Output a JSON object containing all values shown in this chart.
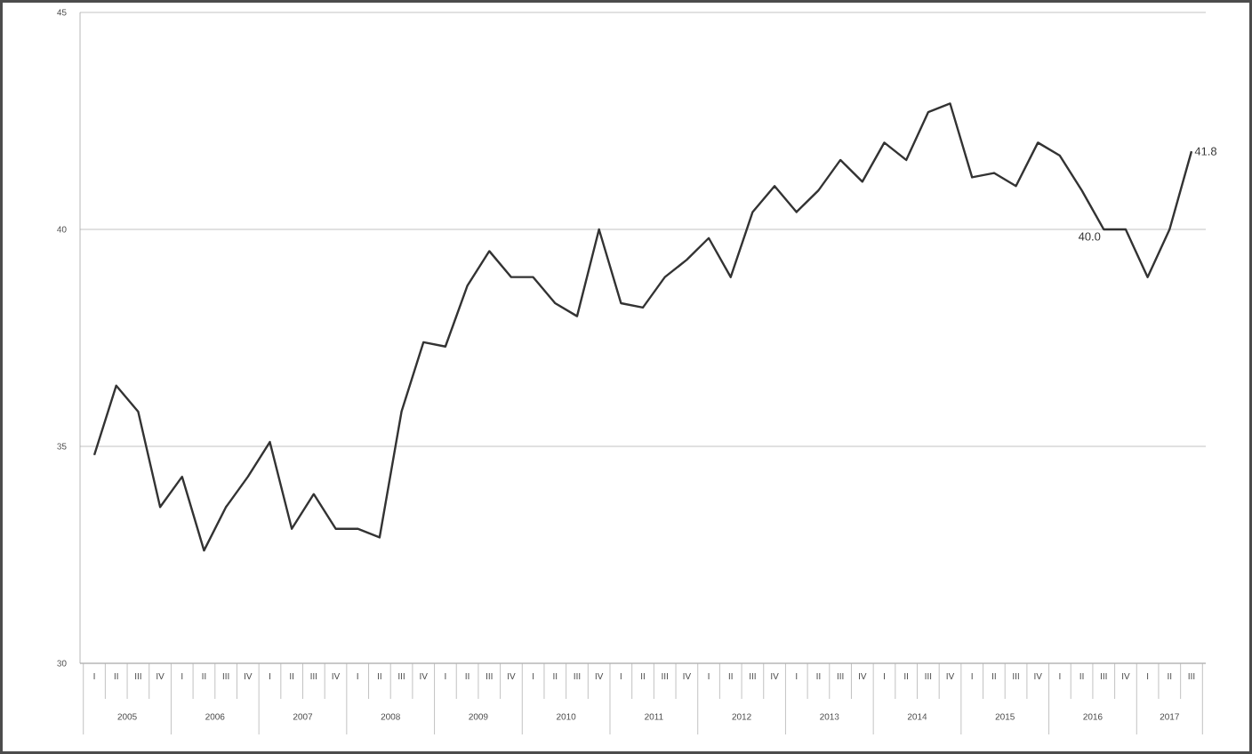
{
  "chart_data": {
    "type": "line",
    "categories": [
      "I",
      "II",
      "III",
      "IV",
      "I",
      "II",
      "III",
      "IV",
      "I",
      "II",
      "III",
      "IV",
      "I",
      "II",
      "III",
      "IV",
      "I",
      "II",
      "III",
      "IV",
      "I",
      "II",
      "III",
      "IV",
      "I",
      "II",
      "III",
      "IV",
      "I",
      "II",
      "III",
      "IV",
      "I",
      "II",
      "III",
      "IV",
      "I",
      "II",
      "III",
      "IV",
      "I",
      "II",
      "III",
      "IV",
      "I",
      "II",
      "III",
      "IV",
      "I",
      "II",
      "III"
    ],
    "series": [
      {
        "color": "#333333",
        "values": [
          34.8,
          36.4,
          35.8,
          33.6,
          34.3,
          32.6,
          33.6,
          34.3,
          35.1,
          33.1,
          33.9,
          33.1,
          33.1,
          32.9,
          35.8,
          37.4,
          37.3,
          38.7,
          39.5,
          38.9,
          38.9,
          38.3,
          38.0,
          40.0,
          38.3,
          38.2,
          38.9,
          39.3,
          39.8,
          38.9,
          40.4,
          41.0,
          40.4,
          40.9,
          41.6,
          41.1,
          42.0,
          41.6,
          42.7,
          42.9,
          41.2,
          41.3,
          41.0,
          42.0,
          41.7,
          40.9,
          40.0,
          40.0,
          38.9,
          40.0,
          41.8
        ],
        "value_labels": [
          null,
          null,
          null,
          null,
          null,
          null,
          null,
          null,
          null,
          null,
          null,
          null,
          null,
          null,
          null,
          null,
          null,
          null,
          null,
          null,
          null,
          null,
          null,
          null,
          null,
          null,
          null,
          null,
          null,
          null,
          null,
          null,
          null,
          null,
          null,
          null,
          null,
          null,
          null,
          null,
          null,
          null,
          null,
          null,
          null,
          null,
          "40.0",
          null,
          null,
          null,
          "41.8"
        ]
      }
    ],
    "annotations": [
      "2005",
      "2006",
      "2007",
      "2008",
      "2009",
      "2010",
      "2011",
      "2012",
      "2013",
      "2014",
      "2015",
      "2016",
      "2017"
    ],
    "ylim": [
      30,
      45
    ],
    "yticks": [
      30,
      35,
      40,
      45
    ],
    "grid": "y",
    "marker": "none",
    "line_style": "solid"
  }
}
